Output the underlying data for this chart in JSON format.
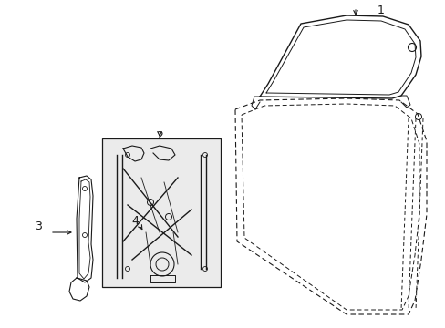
{
  "bg_color": "#ffffff",
  "line_color": "#1a1a1a",
  "part1_label": "1",
  "part2_label": "2",
  "part3_label": "3",
  "part4_label": "4",
  "figsize": [
    4.89,
    3.6
  ],
  "dpi": 100
}
